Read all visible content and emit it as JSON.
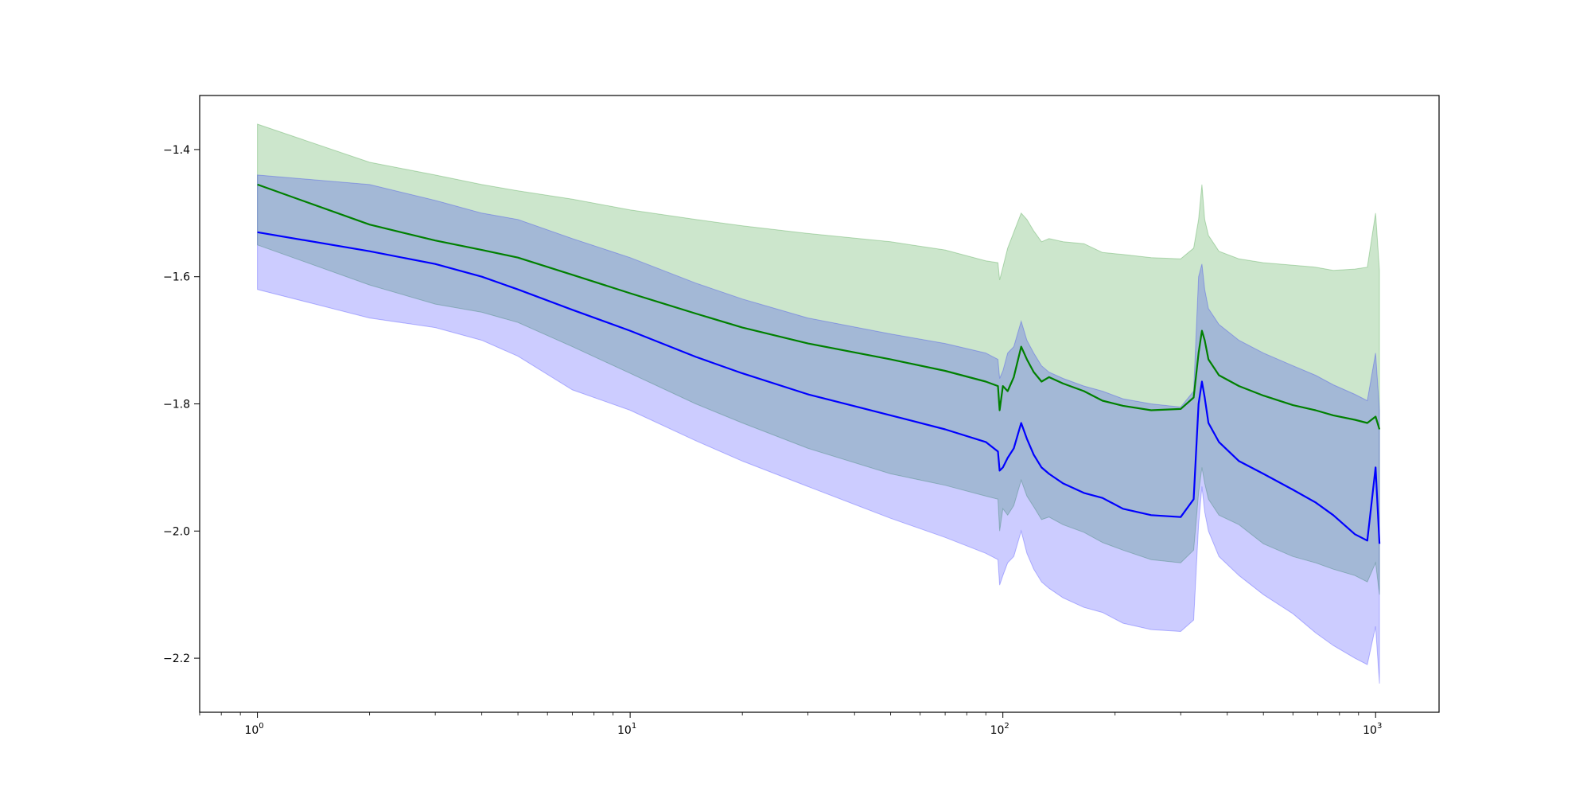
{
  "chart_data": {
    "type": "line",
    "title": "",
    "xlabel": "",
    "ylabel": "",
    "xscale": "log",
    "xlim": [
      0.7,
      1480
    ],
    "ylim": [
      -2.285,
      -1.315
    ],
    "grid": false,
    "legend": "none",
    "x_ticks": [
      {
        "value": 1,
        "base": "10",
        "exp": "0"
      },
      {
        "value": 10,
        "base": "10",
        "exp": "1"
      },
      {
        "value": 100,
        "base": "10",
        "exp": "2"
      },
      {
        "value": 1000,
        "base": "10",
        "exp": "3"
      }
    ],
    "y_ticks": [
      {
        "value": -1.4,
        "label": "−1.4"
      },
      {
        "value": -1.6,
        "label": "−1.6"
      },
      {
        "value": -1.8,
        "label": "−1.8"
      },
      {
        "value": -2.0,
        "label": "−2.0"
      },
      {
        "value": -2.2,
        "label": "−2.2"
      }
    ],
    "series": [
      {
        "color": "#008000",
        "band_color": "#008000",
        "band_opacity": 0.2,
        "x": [
          1,
          2,
          3,
          4,
          5,
          7,
          10,
          15,
          20,
          30,
          50,
          70,
          90,
          97,
          98,
          100,
          103,
          107,
          112,
          116,
          121,
          127,
          133,
          145,
          165,
          185,
          210,
          250,
          300,
          325,
          335,
          342,
          348,
          356,
          380,
          430,
          500,
          600,
          690,
          770,
          880,
          950,
          1000,
          1024
        ],
        "y": [
          -1.455,
          -1.518,
          -1.543,
          -1.558,
          -1.57,
          -1.597,
          -1.626,
          -1.658,
          -1.68,
          -1.705,
          -1.73,
          -1.748,
          -1.765,
          -1.772,
          -1.81,
          -1.772,
          -1.78,
          -1.758,
          -1.71,
          -1.73,
          -1.75,
          -1.765,
          -1.758,
          -1.768,
          -1.78,
          -1.795,
          -1.803,
          -1.81,
          -1.808,
          -1.79,
          -1.72,
          -1.685,
          -1.7,
          -1.73,
          -1.755,
          -1.772,
          -1.787,
          -1.802,
          -1.81,
          -1.818,
          -1.825,
          -1.83,
          -1.82,
          -1.84
        ],
        "upper": [
          -1.36,
          -1.42,
          -1.44,
          -1.455,
          -1.465,
          -1.478,
          -1.495,
          -1.51,
          -1.52,
          -1.532,
          -1.545,
          -1.558,
          -1.575,
          -1.578,
          -1.605,
          -1.585,
          -1.555,
          -1.53,
          -1.5,
          -1.51,
          -1.528,
          -1.545,
          -1.54,
          -1.545,
          -1.548,
          -1.562,
          -1.565,
          -1.57,
          -1.572,
          -1.555,
          -1.51,
          -1.455,
          -1.51,
          -1.535,
          -1.56,
          -1.572,
          -1.578,
          -1.582,
          -1.585,
          -1.59,
          -1.588,
          -1.585,
          -1.5,
          -1.59
        ],
        "lower": [
          -1.55,
          -1.613,
          -1.643,
          -1.656,
          -1.672,
          -1.71,
          -1.752,
          -1.8,
          -1.83,
          -1.87,
          -1.91,
          -1.928,
          -1.945,
          -1.95,
          -2.0,
          -1.965,
          -1.975,
          -1.96,
          -1.92,
          -1.945,
          -1.962,
          -1.982,
          -1.978,
          -1.99,
          -2.002,
          -2.018,
          -2.03,
          -2.045,
          -2.05,
          -2.03,
          -1.94,
          -1.9,
          -1.925,
          -1.95,
          -1.975,
          -1.99,
          -2.02,
          -2.04,
          -2.05,
          -2.06,
          -2.07,
          -2.08,
          -2.05,
          -2.1
        ]
      },
      {
        "color": "#0000ff",
        "band_color": "#0000ff",
        "band_opacity": 0.2,
        "x": [
          1,
          2,
          3,
          4,
          5,
          7,
          10,
          15,
          20,
          30,
          50,
          70,
          90,
          97,
          98,
          100,
          103,
          107,
          112,
          116,
          121,
          127,
          133,
          145,
          165,
          185,
          210,
          250,
          300,
          325,
          335,
          342,
          348,
          356,
          380,
          430,
          500,
          600,
          690,
          770,
          880,
          950,
          1000,
          1024
        ],
        "y": [
          -1.53,
          -1.56,
          -1.58,
          -1.6,
          -1.62,
          -1.652,
          -1.685,
          -1.726,
          -1.752,
          -1.785,
          -1.818,
          -1.84,
          -1.86,
          -1.875,
          -1.905,
          -1.9,
          -1.885,
          -1.87,
          -1.83,
          -1.855,
          -1.88,
          -1.9,
          -1.91,
          -1.925,
          -1.94,
          -1.948,
          -1.965,
          -1.975,
          -1.978,
          -1.95,
          -1.8,
          -1.765,
          -1.79,
          -1.83,
          -1.86,
          -1.89,
          -1.91,
          -1.935,
          -1.955,
          -1.975,
          -2.005,
          -2.015,
          -1.9,
          -2.02
        ],
        "upper": [
          -1.44,
          -1.455,
          -1.48,
          -1.5,
          -1.51,
          -1.54,
          -1.57,
          -1.61,
          -1.635,
          -1.665,
          -1.69,
          -1.705,
          -1.72,
          -1.73,
          -1.76,
          -1.748,
          -1.72,
          -1.71,
          -1.67,
          -1.7,
          -1.72,
          -1.74,
          -1.75,
          -1.76,
          -1.772,
          -1.78,
          -1.792,
          -1.8,
          -1.805,
          -1.78,
          -1.6,
          -1.58,
          -1.62,
          -1.65,
          -1.675,
          -1.7,
          -1.72,
          -1.74,
          -1.755,
          -1.77,
          -1.785,
          -1.795,
          -1.72,
          -1.81
        ],
        "lower": [
          -1.62,
          -1.665,
          -1.68,
          -1.7,
          -1.725,
          -1.778,
          -1.81,
          -1.858,
          -1.89,
          -1.93,
          -1.98,
          -2.01,
          -2.035,
          -2.045,
          -2.085,
          -2.07,
          -2.05,
          -2.04,
          -2.0,
          -2.035,
          -2.06,
          -2.08,
          -2.09,
          -2.105,
          -2.12,
          -2.128,
          -2.145,
          -2.155,
          -2.158,
          -2.14,
          -1.99,
          -1.93,
          -1.97,
          -2.0,
          -2.04,
          -2.07,
          -2.1,
          -2.13,
          -2.16,
          -2.18,
          -2.2,
          -2.21,
          -2.15,
          -2.24
        ]
      }
    ]
  }
}
